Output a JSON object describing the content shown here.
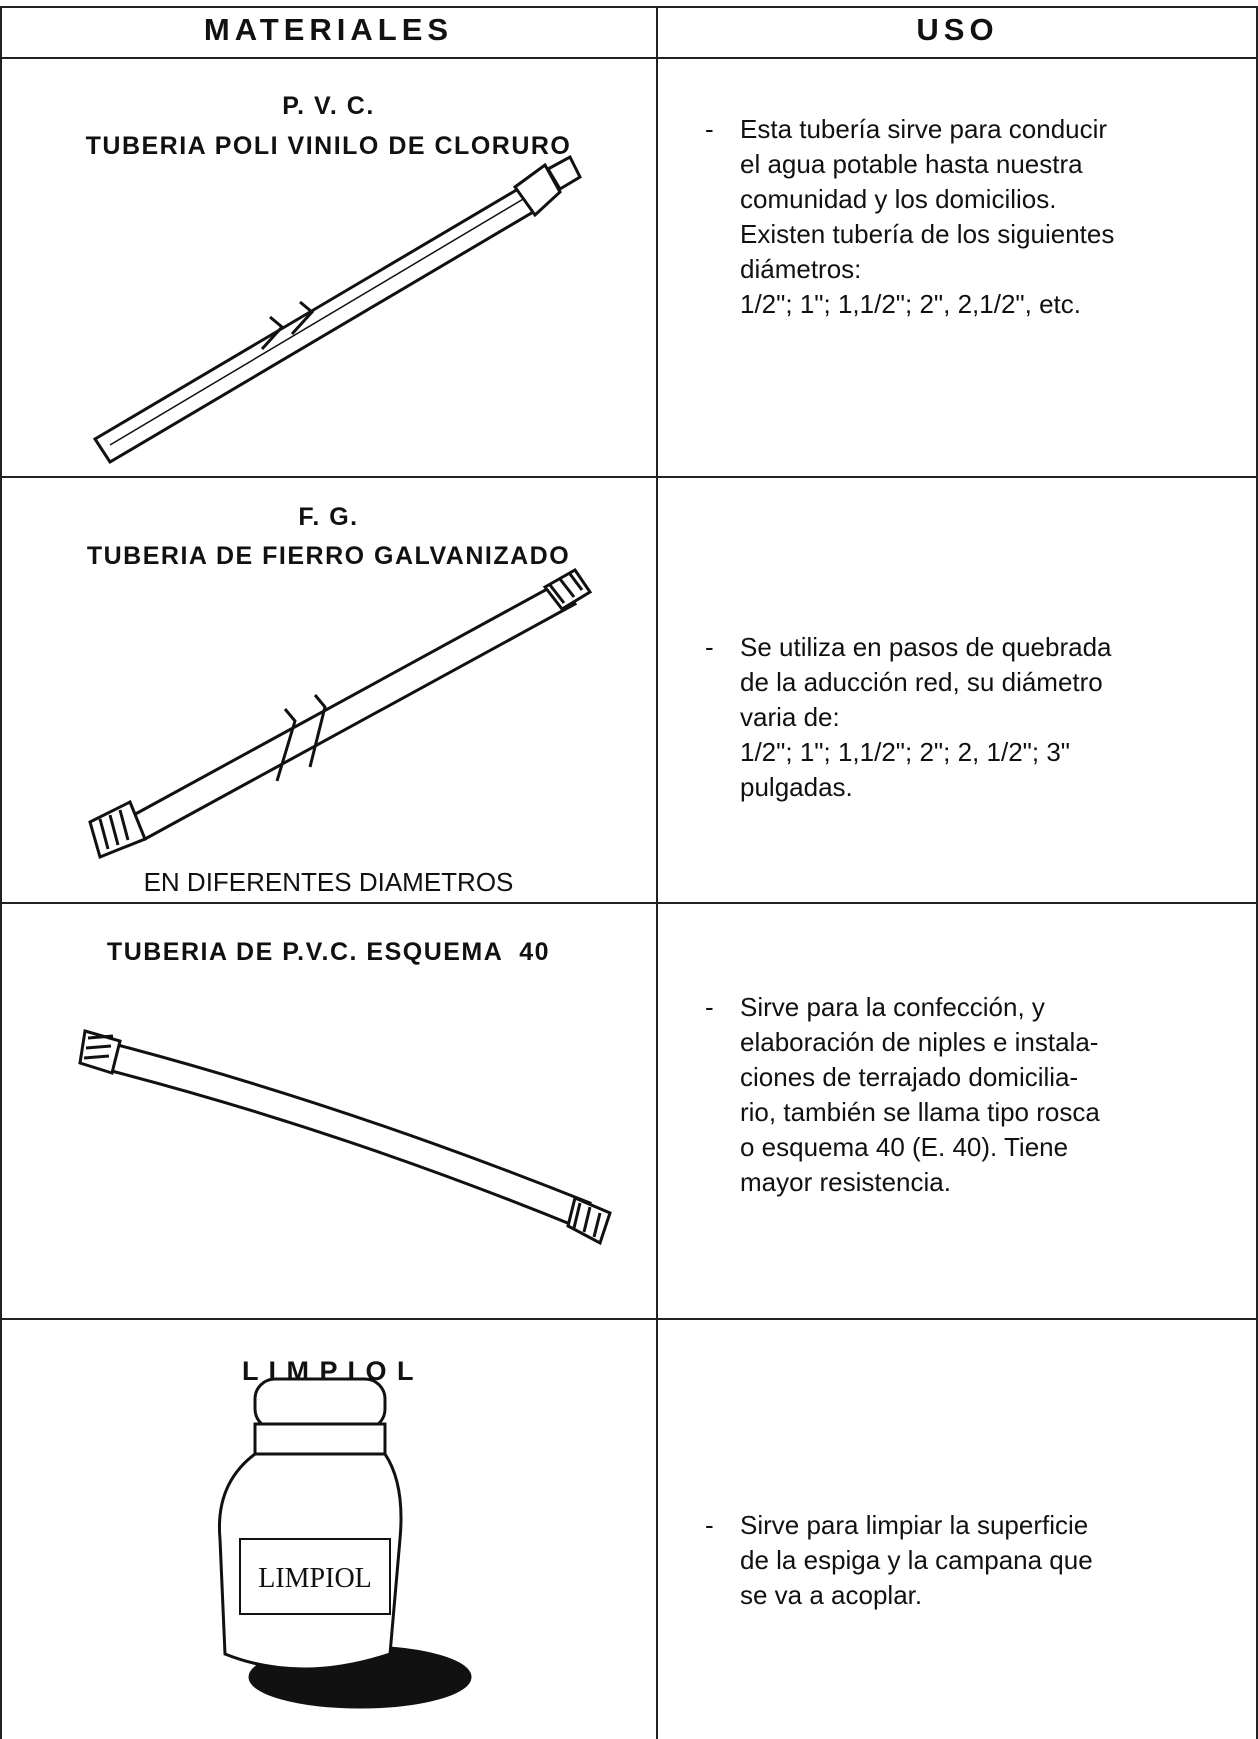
{
  "table": {
    "header": [
      "MATERIALES",
      "USO"
    ],
    "rows": [
      {
        "material": {
          "code": "P. V. C.",
          "name": "TUBERIA POLI VINILO DE CLORURO"
        },
        "uso": {
          "marker": "-",
          "lines": [
            "Esta tubería sirve para conducir",
            "el agua potable hasta nuestra",
            "comunidad y los domicilios.",
            "Existen tubería de los siguientes",
            "diámetros:",
            "1/2\"; 1\"; 1,1/2\"; 2\", 2,1/2\", etc."
          ]
        }
      },
      {
        "material": {
          "code": "F. G.",
          "name": "TUBERIA DE FIERRO GALVANIZADO",
          "note": "EN DIFERENTES DIAMETROS"
        },
        "uso": {
          "marker": "-",
          "lines": [
            "Se utiliza en pasos de quebrada",
            "de la aducción red, su diámetro",
            "varia de:",
            "1/2\"; 1\"; 1,1/2\"; 2\"; 2, 1/2\"; 3\"",
            "pulgadas."
          ]
        }
      },
      {
        "material": {
          "name": "TUBERIA DE P.V.C. ESQUEMA  40"
        },
        "uso": {
          "marker": "-",
          "lines": [
            "Sirve para la confección, y",
            "elaboración de niples e instala-",
            "ciones de terrajado domicilia-",
            "rio, también se llama tipo rosca",
            "o esquema 40 (E. 40). Tiene",
            "mayor resistencia."
          ]
        }
      },
      {
        "material": {
          "name": "L I M P I O L",
          "label": "LIMPIOL"
        },
        "uso": {
          "marker": "-",
          "lines": [
            "Sirve para limpiar la superficie",
            "de la espiga y la campana que",
            "se va a acoplar."
          ]
        }
      }
    ]
  }
}
